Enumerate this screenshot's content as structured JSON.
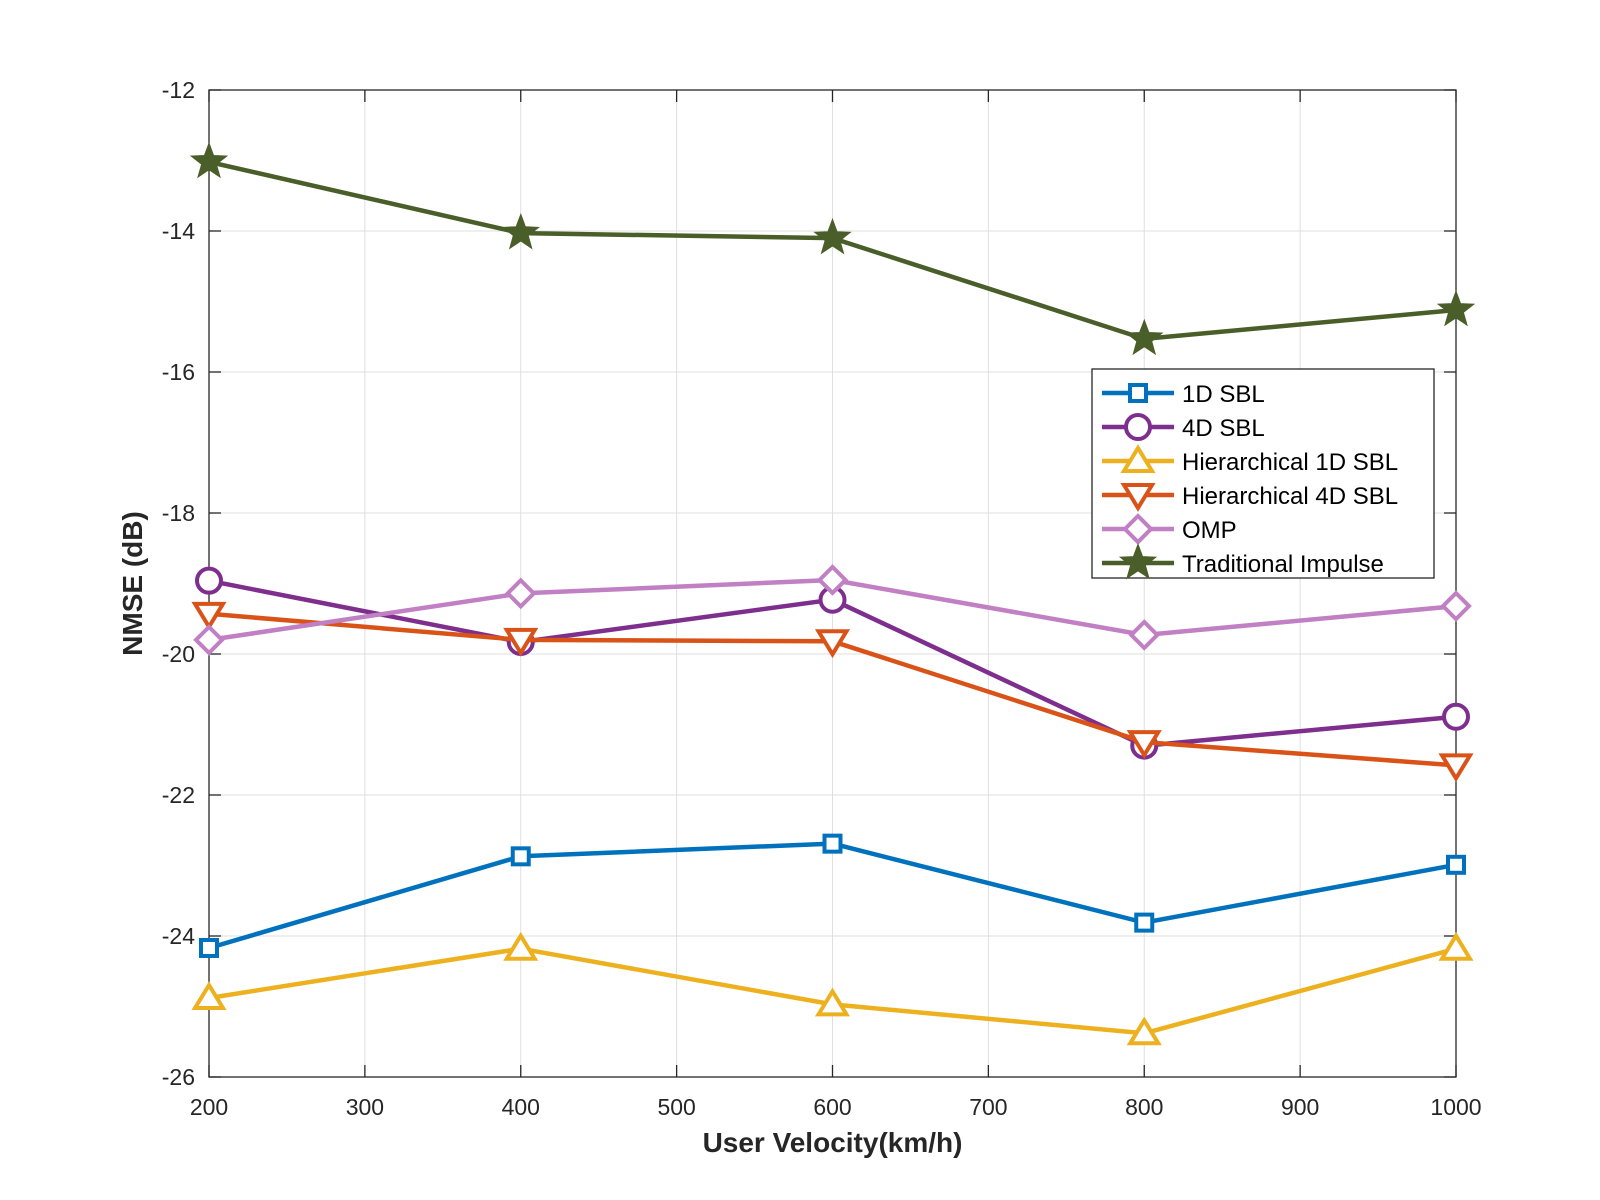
{
  "chart_data": {
    "type": "line",
    "title": "",
    "xlabel": "User Velocity(km/h)",
    "ylabel": "NMSE (dB)",
    "xlim": [
      200,
      1000
    ],
    "ylim": [
      -26,
      -12
    ],
    "xticks": [
      200,
      300,
      400,
      500,
      600,
      700,
      800,
      900,
      1000
    ],
    "yticks": [
      -26,
      -24,
      -22,
      -20,
      -18,
      -16,
      -14,
      -12
    ],
    "grid": true,
    "legend_position": "right",
    "x": [
      200,
      400,
      600,
      800,
      1000
    ],
    "series": [
      {
        "name": "1D SBL",
        "color": "#0072BD",
        "marker": "square",
        "values": [
          -24.17,
          -22.87,
          -22.69,
          -23.81,
          -22.99
        ]
      },
      {
        "name": "4D SBL",
        "color": "#7E2F8E",
        "marker": "circle",
        "values": [
          -18.96,
          -19.83,
          -19.23,
          -21.3,
          -20.89
        ]
      },
      {
        "name": "Hierarchical 1D SBL",
        "color": "#EDB120",
        "marker": "triangle-up",
        "values": [
          -24.88,
          -24.18,
          -24.97,
          -25.38,
          -24.18
        ]
      },
      {
        "name": "Hierarchical 4D SBL",
        "color": "#D95319",
        "marker": "triangle-down",
        "values": [
          -19.43,
          -19.8,
          -19.82,
          -21.25,
          -21.58
        ]
      },
      {
        "name": "OMP",
        "color": "#C17FC4",
        "marker": "diamond",
        "values": [
          -19.8,
          -19.14,
          -18.95,
          -19.73,
          -19.32
        ]
      },
      {
        "name": "Traditional Impulse",
        "color": "#4A5E2A",
        "marker": "star",
        "values": [
          -13.02,
          -14.03,
          -14.1,
          -15.53,
          -15.12
        ]
      }
    ]
  }
}
